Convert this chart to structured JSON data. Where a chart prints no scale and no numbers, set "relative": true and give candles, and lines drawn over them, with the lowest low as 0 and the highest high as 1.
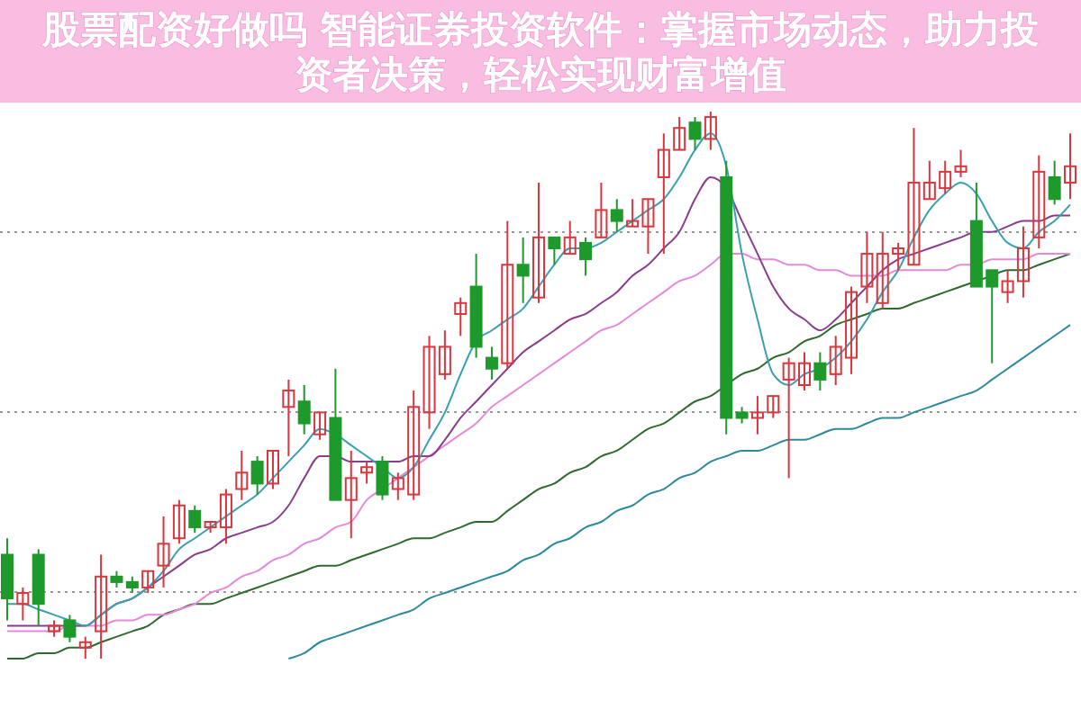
{
  "chart_data": {
    "type": "candlestick",
    "title": "股票配资好做吗 智能证券投资软件：掌握市场动态，助力投资者决策，轻松实现财富增值",
    "relative": true,
    "grid": true,
    "categories": [
      null,
      null,
      null,
      null,
      null,
      null,
      null,
      null,
      null,
      null,
      null,
      null,
      null,
      null,
      null,
      null,
      null,
      null,
      null,
      null,
      null,
      null,
      null,
      null,
      null,
      null,
      null,
      null,
      null,
      null,
      null,
      null,
      null,
      null,
      null,
      null,
      null,
      null,
      null,
      null,
      null,
      null,
      null,
      null,
      null,
      null,
      null,
      null,
      null,
      null,
      null,
      null,
      null,
      null,
      null,
      null,
      null,
      null,
      null,
      null,
      null,
      null,
      null,
      null,
      null,
      null,
      null,
      null,
      null
    ],
    "ohlc": [
      [
        0.19,
        0.22,
        0.07,
        0.11
      ],
      [
        0.1,
        0.13,
        0.07,
        0.12
      ],
      [
        0.19,
        0.2,
        0.06,
        0.1
      ],
      [
        0.05,
        0.07,
        0.04,
        0.06
      ],
      [
        0.07,
        0.08,
        0.03,
        0.04
      ],
      [
        0.02,
        0.04,
        0,
        0.03
      ],
      [
        0.05,
        0.19,
        0,
        0.15
      ],
      [
        0.15,
        0.16,
        0.13,
        0.14
      ],
      [
        0.14,
        0.15,
        0.12,
        0.13
      ],
      [
        0.13,
        0.16,
        0.12,
        0.16
      ],
      [
        0.17,
        0.26,
        0.13,
        0.21
      ],
      [
        0.22,
        0.29,
        0.21,
        0.28
      ],
      [
        0.27,
        0.28,
        0.23,
        0.24
      ],
      [
        0.24,
        0.25,
        0.23,
        0.25
      ],
      [
        0.24,
        0.31,
        0.21,
        0.3
      ],
      [
        0.31,
        0.38,
        0.29,
        0.34
      ],
      [
        0.36,
        0.37,
        0.3,
        0.32
      ],
      [
        0.32,
        0.38,
        0.31,
        0.38
      ],
      [
        0.46,
        0.51,
        0.37,
        0.49
      ],
      [
        0.47,
        0.5,
        0.41,
        0.43
      ],
      [
        0.41,
        0.45,
        0.4,
        0.45
      ],
      [
        0.44,
        0.53,
        0.29,
        0.29
      ],
      [
        0.29,
        0.38,
        0.22,
        0.33
      ],
      [
        0.34,
        0.36,
        0.32,
        0.35
      ],
      [
        0.36,
        0.37,
        0.29,
        0.3
      ],
      [
        0.31,
        0.34,
        0.29,
        0.33
      ],
      [
        0.3,
        0.49,
        0.29,
        0.46
      ],
      [
        0.45,
        0.59,
        0.42,
        0.57
      ],
      [
        0.52,
        0.6,
        0.51,
        0.57
      ],
      [
        0.63,
        0.66,
        0.59,
        0.65
      ],
      [
        0.68,
        0.74,
        0.55,
        0.57
      ],
      [
        0.55,
        0.57,
        0.51,
        0.53
      ],
      [
        0.54,
        0.8,
        0.53,
        0.72
      ],
      [
        0.72,
        0.77,
        0.65,
        0.7
      ],
      [
        0.66,
        0.87,
        0.65,
        0.77
      ],
      [
        0.77,
        0.77,
        0.72,
        0.75
      ],
      [
        0.74,
        0.8,
        0.74,
        0.77
      ],
      [
        0.76,
        0.77,
        0.7,
        0.73
      ],
      [
        0.77,
        0.87,
        0.77,
        0.82
      ],
      [
        0.82,
        0.84,
        0.78,
        0.8
      ],
      [
        0.79,
        0.84,
        0.79,
        0.8
      ],
      [
        0.79,
        0.84,
        0.74,
        0.84
      ],
      [
        0.88,
        0.96,
        0.74,
        0.93
      ],
      [
        0.93,
        0.99,
        0.93,
        0.97
      ],
      [
        0.98,
        0.99,
        0.93,
        0.95
      ],
      [
        0.95,
        1,
        0.93,
        0.99
      ],
      [
        0.88,
        0.91,
        0.41,
        0.44
      ],
      [
        0.45,
        0.46,
        0.43,
        0.44
      ],
      [
        0.44,
        0.48,
        0.41,
        0.45
      ],
      [
        0.45,
        0.48,
        0.44,
        0.48
      ],
      [
        0.51,
        0.55,
        0.33,
        0.54
      ],
      [
        0.5,
        0.56,
        0.49,
        0.54
      ],
      [
        0.54,
        0.56,
        0.49,
        0.51
      ],
      [
        0.52,
        0.59,
        0.5,
        0.57
      ],
      [
        0.55,
        0.68,
        0.52,
        0.67
      ],
      [
        0.68,
        0.78,
        0.65,
        0.74
      ],
      [
        0.65,
        0.78,
        0.64,
        0.74
      ],
      [
        0.74,
        0.76,
        0.71,
        0.75
      ],
      [
        0.72,
        0.97,
        0.72,
        0.87
      ],
      [
        0.84,
        0.91,
        0.84,
        0.87
      ],
      [
        0.86,
        0.91,
        0.85,
        0.89
      ],
      [
        0.89,
        0.93,
        0.88,
        0.9
      ],
      [
        0.8,
        0.87,
        0.68,
        0.68
      ],
      [
        0.71,
        0.71,
        0.54,
        0.68
      ],
      [
        0.67,
        0.71,
        0.65,
        0.69
      ],
      [
        0.69,
        0.79,
        0.66,
        0.75
      ],
      [
        0.77,
        0.92,
        0.75,
        0.89
      ],
      [
        0.88,
        0.91,
        0.83,
        0.84
      ],
      [
        0.87,
        0.96,
        0.84,
        0.9
      ]
    ],
    "series": [
      {
        "type": "line",
        "color": "#2e8a9a",
        "values": [
          null,
          null,
          null,
          null,
          null,
          null,
          null,
          null,
          null,
          null,
          null,
          null,
          null,
          null,
          null,
          null,
          null,
          null,
          0.0,
          0.01,
          0.03,
          0.04,
          0.05,
          0.06,
          0.07,
          0.08,
          0.09,
          0.11,
          0.12,
          0.13,
          0.14,
          0.15,
          0.16,
          0.18,
          0.19,
          0.21,
          0.22,
          0.24,
          0.25,
          0.27,
          0.28,
          0.3,
          0.31,
          0.33,
          0.34,
          0.36,
          0.37,
          0.38,
          0.38,
          0.39,
          0.4,
          0.4,
          0.41,
          0.42,
          0.42,
          0.43,
          0.44,
          0.44,
          0.45,
          0.46,
          0.47,
          0.48,
          0.49,
          0.51,
          0.53,
          0.55,
          0.57,
          0.59,
          0.61
        ]
      },
      {
        "type": "line",
        "color": "#2f6b2f",
        "values": [
          0.0,
          0.0,
          0.01,
          0.01,
          0.02,
          0.02,
          0.03,
          0.04,
          0.05,
          0.06,
          0.08,
          0.09,
          0.1,
          0.1,
          0.11,
          0.12,
          0.13,
          0.14,
          0.15,
          0.16,
          0.17,
          0.17,
          0.18,
          0.19,
          0.2,
          0.21,
          0.22,
          0.22,
          0.23,
          0.24,
          0.25,
          0.25,
          0.27,
          0.29,
          0.31,
          0.32,
          0.34,
          0.35,
          0.37,
          0.38,
          0.4,
          0.42,
          0.43,
          0.45,
          0.47,
          0.48,
          0.5,
          0.52,
          0.53,
          0.55,
          0.56,
          0.58,
          0.59,
          0.61,
          0.62,
          0.63,
          0.64,
          0.64,
          0.65,
          0.66,
          0.67,
          0.68,
          0.69,
          0.7,
          0.71,
          0.71,
          0.72,
          0.73,
          0.74
        ]
      },
      {
        "type": "line",
        "color": "#e58ad8",
        "values": [
          0.05,
          0.05,
          0.05,
          0.05,
          0.06,
          0.06,
          0.06,
          0.07,
          0.07,
          0.08,
          0.08,
          0.09,
          0.1,
          0.12,
          0.13,
          0.15,
          0.16,
          0.18,
          0.19,
          0.21,
          0.22,
          0.24,
          0.25,
          0.29,
          0.31,
          0.33,
          0.35,
          0.37,
          0.39,
          0.41,
          0.43,
          0.46,
          0.48,
          0.5,
          0.52,
          0.54,
          0.56,
          0.58,
          0.6,
          0.61,
          0.63,
          0.65,
          0.67,
          0.69,
          0.7,
          0.72,
          0.74,
          0.74,
          0.73,
          0.73,
          0.72,
          0.72,
          0.71,
          0.71,
          0.7,
          0.7,
          0.7,
          0.71,
          0.71,
          0.71,
          0.71,
          0.72,
          0.72,
          0.73,
          0.73,
          0.73,
          0.74,
          0.74,
          0.74
        ]
      },
      {
        "type": "line",
        "color": "#8a3d8a",
        "values": [
          0.06,
          0.06,
          0.06,
          0.06,
          0.06,
          0.06,
          0.08,
          0.1,
          0.11,
          0.13,
          0.15,
          0.17,
          0.19,
          0.2,
          0.22,
          0.23,
          0.24,
          0.25,
          0.28,
          0.33,
          0.37,
          0.37,
          0.36,
          0.36,
          0.36,
          0.36,
          0.37,
          0.37,
          0.4,
          0.44,
          0.47,
          0.5,
          0.53,
          0.56,
          0.58,
          0.6,
          0.62,
          0.63,
          0.65,
          0.67,
          0.7,
          0.72,
          0.75,
          0.78,
          0.84,
          0.88,
          0.86,
          0.8,
          0.74,
          0.68,
          0.64,
          0.62,
          0.6,
          0.62,
          0.65,
          0.68,
          0.71,
          0.73,
          0.74,
          0.75,
          0.76,
          0.77,
          0.78,
          0.78,
          0.79,
          0.8,
          0.8,
          0.81,
          0.81
        ]
      },
      {
        "type": "line",
        "color": "#3aa0b0",
        "values": [
          0.1,
          0.1,
          0.09,
          0.08,
          0.07,
          0.06,
          0.08,
          0.1,
          0.11,
          0.13,
          0.16,
          0.2,
          0.22,
          0.24,
          0.26,
          0.28,
          0.3,
          0.33,
          0.36,
          0.39,
          0.42,
          0.41,
          0.39,
          0.37,
          0.35,
          0.33,
          0.35,
          0.4,
          0.45,
          0.52,
          0.58,
          0.6,
          0.62,
          0.64,
          0.68,
          0.72,
          0.75,
          0.75,
          0.76,
          0.78,
          0.8,
          0.82,
          0.84,
          0.88,
          0.93,
          0.96,
          0.9,
          0.74,
          0.62,
          0.52,
          0.5,
          0.52,
          0.53,
          0.55,
          0.58,
          0.62,
          0.67,
          0.71,
          0.77,
          0.82,
          0.85,
          0.87,
          0.85,
          0.8,
          0.76,
          0.75,
          0.78,
          0.8,
          0.83
        ]
      }
    ]
  }
}
